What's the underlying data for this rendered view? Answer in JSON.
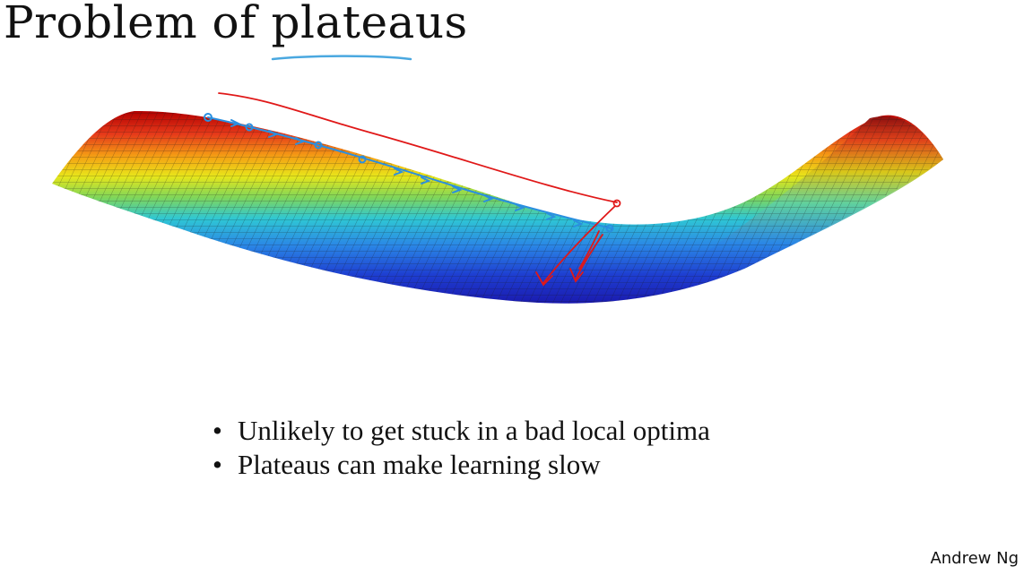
{
  "slide": {
    "title": "Problem of plateaus",
    "bullets": [
      {
        "symbol": "•",
        "text": "Unlikely to get stuck in a bad local optima"
      },
      {
        "symbol": "•",
        "text": "Plateaus can make learning slow"
      }
    ],
    "credit": "Andrew Ng"
  },
  "colors": {
    "underline": "#4aa8e0",
    "path_blue": "#2a8fe0",
    "annotation_red": "#e01818"
  }
}
